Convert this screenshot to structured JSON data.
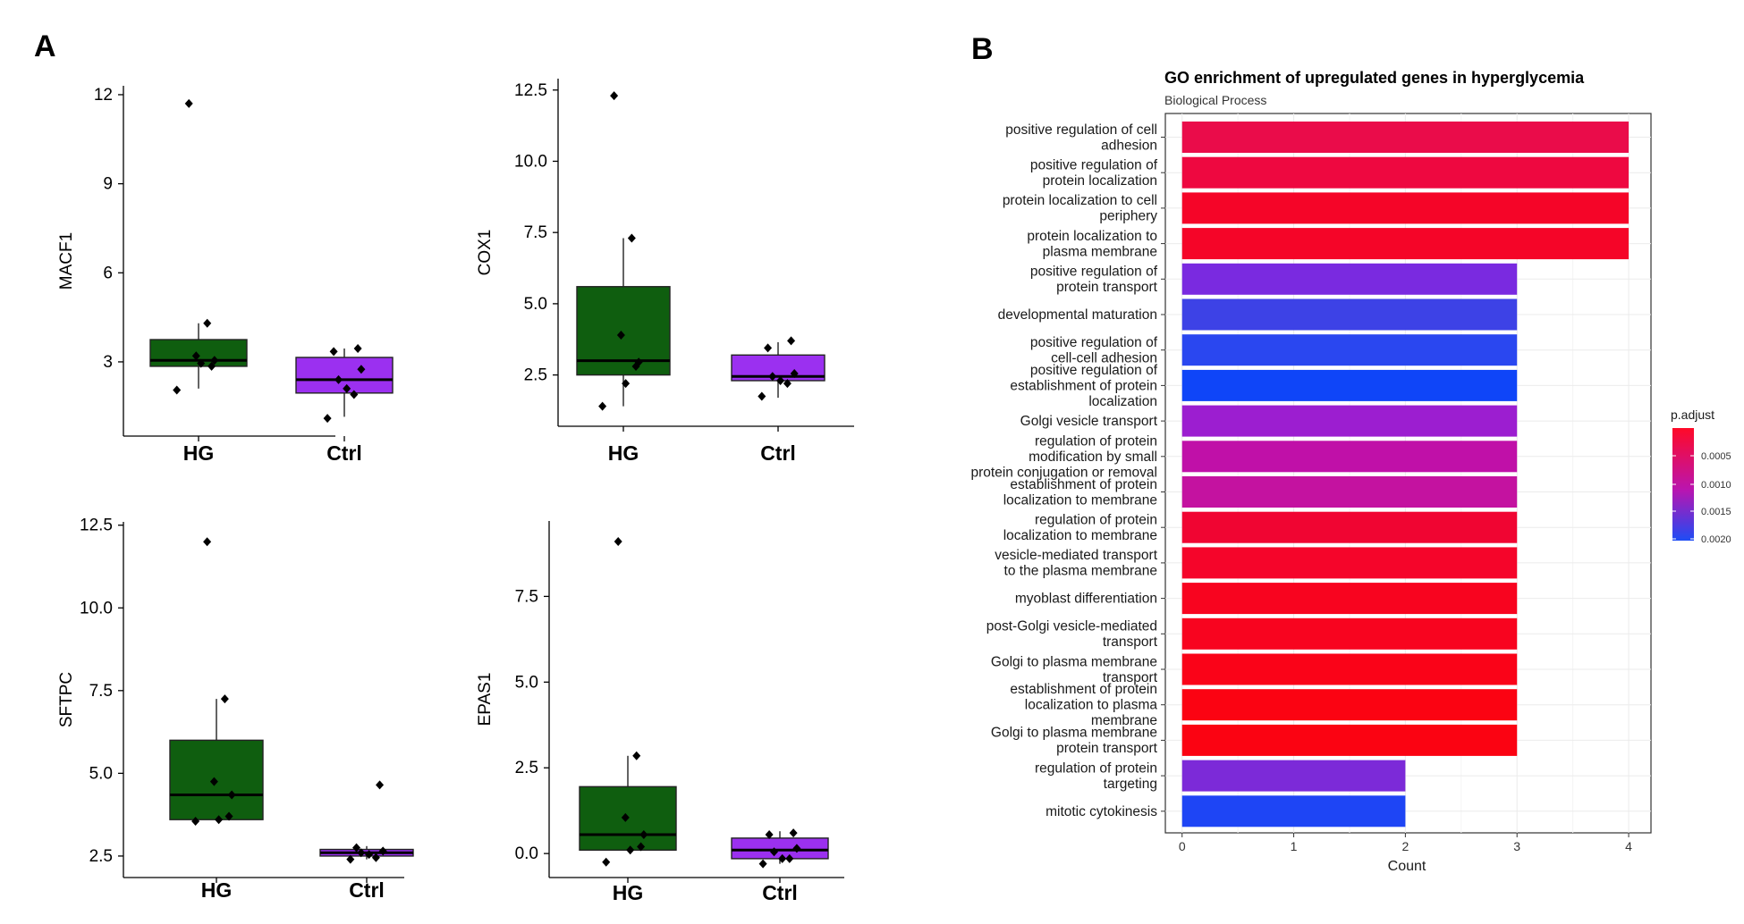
{
  "panels": {
    "a": "A",
    "b": "B"
  },
  "colors": {
    "HG": "#0f5e0f",
    "Ctrl": "#9b30f0"
  },
  "chart_data": [
    {
      "type": "box",
      "id": "MACF1",
      "ylabel": "MACF1",
      "categories": [
        "HG",
        "Ctrl"
      ],
      "ylim": [
        0.5,
        12.3
      ],
      "yticks": [
        3,
        6,
        9,
        12
      ],
      "yticklabels": [
        "3",
        "6",
        "9",
        "12"
      ],
      "boxes": [
        {
          "q1": 2.85,
          "median": 3.05,
          "q3": 3.75,
          "whisker_low": 2.1,
          "whisker_high": 4.3
        },
        {
          "q1": 1.95,
          "median": 2.4,
          "q3": 3.15,
          "whisker_low": 1.15,
          "whisker_high": 3.45
        }
      ],
      "points": [
        [
          11.7,
          4.3,
          3.2,
          3.05,
          2.85,
          2.95,
          2.05
        ],
        [
          3.45,
          3.35,
          2.75,
          2.4,
          2.1,
          1.9,
          1.1
        ]
      ]
    },
    {
      "type": "box",
      "id": "COX1",
      "ylabel": "COX1",
      "categories": [
        "HG",
        "Ctrl"
      ],
      "ylim": [
        0.7,
        12.9
      ],
      "yticks": [
        2.5,
        5.0,
        7.5,
        10.0,
        12.5
      ],
      "yticklabels": [
        "2.5",
        "5.0",
        "7.5",
        "10.0",
        "12.5"
      ],
      "boxes": [
        {
          "q1": 2.5,
          "median": 3.0,
          "q3": 5.6,
          "whisker_low": 1.4,
          "whisker_high": 7.3
        },
        {
          "q1": 2.3,
          "median": 2.45,
          "q3": 3.2,
          "whisker_low": 1.7,
          "whisker_high": 3.65
        }
      ],
      "points": [
        [
          12.3,
          7.3,
          3.9,
          2.95,
          2.8,
          2.2,
          1.4
        ],
        [
          3.7,
          3.45,
          2.55,
          2.45,
          2.3,
          2.2,
          1.75
        ]
      ]
    },
    {
      "type": "box",
      "id": "SFTPC",
      "ylabel": "SFTPC",
      "categories": [
        "HG",
        "Ctrl"
      ],
      "ylim": [
        1.85,
        12.6
      ],
      "yticks": [
        2.5,
        5.0,
        7.5,
        10.0,
        12.5
      ],
      "yticklabels": [
        "2.5",
        "5.0",
        "7.5",
        "10.0",
        "12.5"
      ],
      "boxes": [
        {
          "q1": 3.6,
          "median": 4.35,
          "q3": 6.0,
          "whisker_low": 3.6,
          "whisker_high": 7.25
        },
        {
          "q1": 2.5,
          "median": 2.6,
          "q3": 2.7,
          "whisker_low": 2.4,
          "whisker_high": 2.8
        }
      ],
      "points": [
        [
          12.0,
          7.25,
          4.75,
          4.35,
          3.7,
          3.6,
          3.55
        ],
        [
          4.65,
          2.75,
          2.65,
          2.6,
          2.55,
          2.45,
          2.4
        ]
      ]
    },
    {
      "type": "box",
      "id": "EPAS1",
      "ylabel": "EPAS1",
      "categories": [
        "HG",
        "Ctrl"
      ],
      "ylim": [
        -0.7,
        9.7
      ],
      "yticks": [
        0.0,
        2.5,
        5.0,
        7.5
      ],
      "yticklabels": [
        "0.0",
        "2.5",
        "5.0",
        "7.5"
      ],
      "boxes": [
        {
          "q1": 0.1,
          "median": 0.55,
          "q3": 1.95,
          "whisker_low": 0.1,
          "whisker_high": 2.85
        },
        {
          "q1": -0.15,
          "median": 0.1,
          "q3": 0.45,
          "whisker_low": -0.3,
          "whisker_high": 0.65
        }
      ],
      "points": [
        [
          9.1,
          2.85,
          1.05,
          0.55,
          0.2,
          0.1,
          -0.25
        ],
        [
          0.6,
          0.55,
          0.15,
          0.05,
          -0.15,
          -0.15,
          -0.3
        ]
      ]
    },
    {
      "type": "bar",
      "title": "GO enrichment of upregulated genes in hyperglycemia",
      "subtitle": "Biological Process",
      "xlabel": "Count",
      "xlim": [
        -0.15,
        4.2
      ],
      "xticks": [
        0,
        1,
        2,
        3,
        4
      ],
      "xticklabels": [
        "0",
        "1",
        "2",
        "3",
        "4"
      ],
      "categories": [
        [
          "positive regulation of cell",
          "adhesion"
        ],
        [
          "positive regulation of",
          "protein localization"
        ],
        [
          "protein localization to cell",
          "periphery"
        ],
        [
          "protein localization to",
          "plasma membrane"
        ],
        [
          "positive regulation of",
          "protein transport"
        ],
        [
          "developmental maturation"
        ],
        [
          "positive regulation of",
          "cell-cell adhesion"
        ],
        [
          "positive regulation of",
          "establishment of protein",
          "localization"
        ],
        [
          "Golgi vesicle transport"
        ],
        [
          "regulation of protein",
          "modification by small",
          "protein conjugation or removal"
        ],
        [
          "establishment of protein",
          "localization to membrane"
        ],
        [
          "regulation of protein",
          "localization to membrane"
        ],
        [
          "vesicle-mediated transport",
          "to the plasma membrane"
        ],
        [
          "myoblast differentiation"
        ],
        [
          "post-Golgi vesicle-mediated",
          "transport"
        ],
        [
          "Golgi to plasma membrane",
          "transport"
        ],
        [
          "establishment of protein",
          "localization to plasma",
          "membrane"
        ],
        [
          "Golgi to plasma membrane",
          "protein transport"
        ],
        [
          "regulation of protein",
          "targeting"
        ],
        [
          "mitotic cytokinesis"
        ]
      ],
      "values": [
        4,
        4,
        4,
        4,
        3,
        3,
        3,
        3,
        3,
        3,
        3,
        3,
        3,
        3,
        3,
        3,
        3,
        3,
        2,
        2
      ],
      "bar_colors": [
        "#ea0c4a",
        "#ee0840",
        "#f50528",
        "#f50528",
        "#7a2ae0",
        "#3d42e6",
        "#2a47f0",
        "#0f45f8",
        "#9c1ed0",
        "#c010a8",
        "#c412a0",
        "#f00532",
        "#f5052a",
        "#f8041f",
        "#f8041f",
        "#fa0318",
        "#fb0312",
        "#fb0312",
        "#7c2ad8",
        "#1e45f5"
      ],
      "legend": {
        "title": "p.adjust",
        "position": "right",
        "ticks": [
          "0.0005",
          "0.0010",
          "0.0015",
          "0.0020"
        ],
        "color_high": "#ff0a28",
        "color_low": "#1e4cf5"
      },
      "grid": true
    }
  ]
}
